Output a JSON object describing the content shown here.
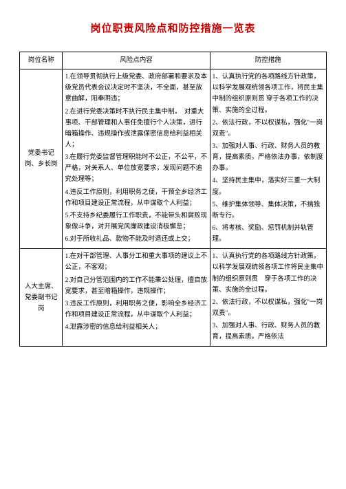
{
  "title": "岗位职责风险点和防控措施一览表",
  "headers": {
    "post": "岗位名称",
    "risk": "风险点内容",
    "ctrl": "防控措施"
  },
  "rows": [
    {
      "post": "党委书记岗、乡长岗",
      "risks": [
        "1.在领导贯彻执行上级党委、政府部署和要求及本级党员代表会议决定时不坚决，不全面，甚至故意曲解，阳奉阴违；",
        "2.在进行党委决策时不执行民主集中制，　对重大事项、干部管理和人事任免擅行个人决策，进行暗箱操作、违规操作或泄露保密信息给利益相关人；",
        "3.在履行党委监督管理职能时不公正，不公平，不严格，对关系人、单位放宽要求，发现问题不追究处理等；",
        "4.违反工作原则，利用职务之便，干预全乡经济工作和项目建设正常流程，从中谋取个人利益；",
        "5.不支持乡纪委履行工作职责，不能带头和腐败现象做斗争，对开展党风廉政建设消极懈怠；",
        "6.对于所收礼品、款物不能及时退还或上交；"
      ],
      "ctrls": [
        "1、认真执行党的各项路线方针政策，以科学发展观统领各项工作，将民主集中制的组织原则贯 穿于各项工作的决策、实施的全过程。",
        "2、依法行政，不以权谋私，强化\"一岗双责\"。",
        "3、加强对人事、行政、财务人员的教育，提高素质，严格依法办事，依制度办事。",
        "4、坚持民主集中，落实好三重一大制度。",
        "5、维护集体领导、集体决策，不搞独断专行。",
        "6、将考核、奖励、惩罚机制并轨管理。"
      ]
    },
    {
      "post": "人大主席、党委副书记岗",
      "risks": [
        "1.在对干部管理、人事分工和重大事项的建议上不公正，不客观；",
        "2.对自己分管范围内的工作不能秉公处理，擅自放宽要求，甚至暗箱操作，违规操作；",
        "3.违反工作原则，利用职务之便，影响全乡经济工作和项目建设正常流程，从中谋取个人利益；",
        "4.泄露涉密的信息给利益相关人；"
      ],
      "ctrls": [
        "1、认真执行党的各项路线方针政策，以科学发展观统领各项工作将民主集中制的组织原则贯　穿于各项工作的决策、实施的全过程。",
        "2、依法行政，不以权谋私，强化\"一岗双责\"。",
        "3、加强对人事、行政、财务人员的教育，提高素质，严格依法"
      ]
    }
  ]
}
